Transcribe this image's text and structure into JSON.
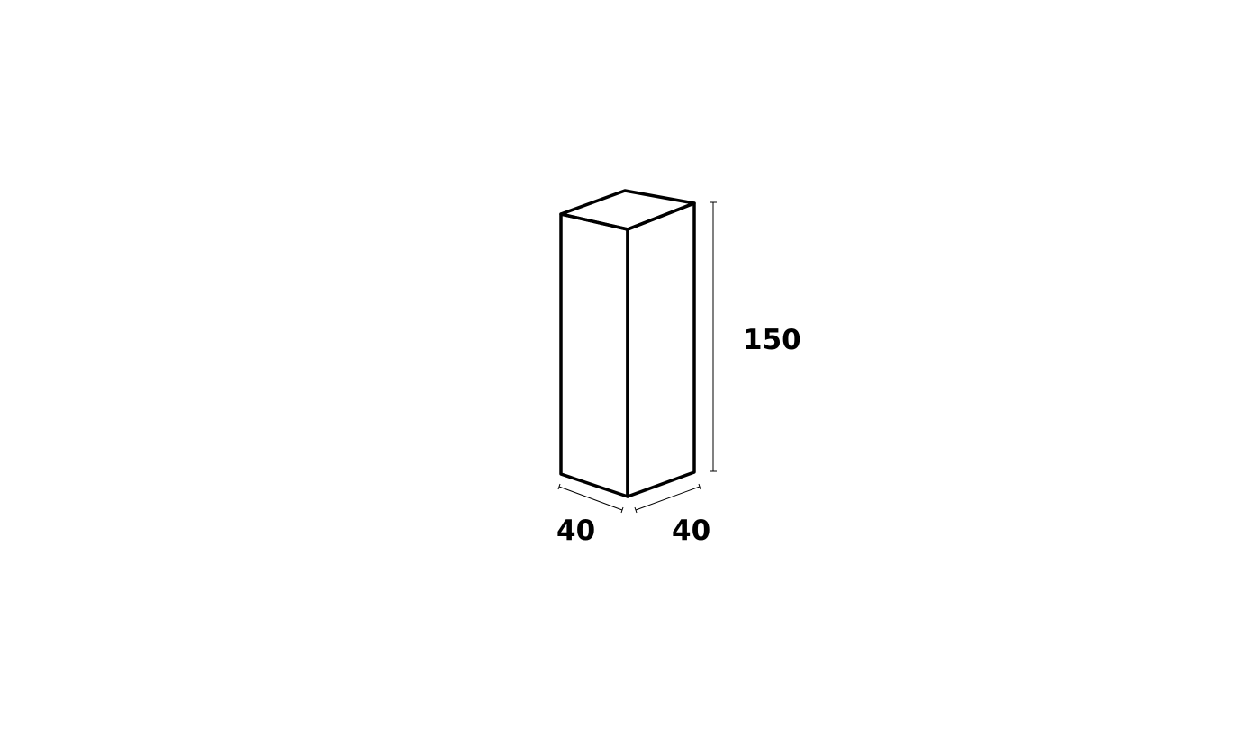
{
  "dimensions": {
    "width": "40",
    "depth": "40",
    "height": "150"
  },
  "colors": {
    "stroke": "#000000",
    "background": "#ffffff"
  }
}
